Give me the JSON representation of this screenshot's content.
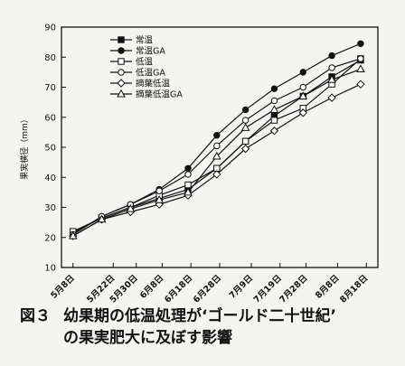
{
  "chart_data": {
    "type": "line",
    "ylabel": "果実横径（mm）",
    "xlabel": "",
    "ylim": [
      10,
      90
    ],
    "yticks": [
      10,
      20,
      30,
      40,
      50,
      60,
      70,
      80,
      90
    ],
    "grid": false,
    "legend_position": "top-left",
    "categories": [
      "5月8日",
      "5月22日",
      "5月30日",
      "6月8日",
      "6月18日",
      "6月28日",
      "7月9日",
      "7月19日",
      "7月28日",
      "8月8日",
      "8月18日"
    ],
    "x": [
      0,
      14,
      22,
      31,
      41,
      51,
      62,
      72,
      81,
      92,
      102
    ],
    "series": [
      {
        "name": "常温",
        "marker": "filled-square",
        "x": [
          0,
          10,
          20,
          30,
          40,
          50,
          60,
          70,
          80,
          90,
          100
        ],
        "values": [
          21.5,
          26.5,
          30,
          33,
          36,
          43,
          52,
          60.5,
          67,
          73.5,
          79
        ]
      },
      {
        "name": "常温GA",
        "marker": "filled-circle",
        "x": [
          0,
          10,
          20,
          30,
          40,
          50,
          60,
          70,
          80,
          90,
          100
        ],
        "values": [
          21,
          27,
          31,
          36,
          43,
          54,
          62.5,
          69.5,
          75,
          80.5,
          84.5
        ]
      },
      {
        "name": "低温",
        "marker": "open-square",
        "x": [
          0,
          10,
          20,
          30,
          40,
          50,
          60,
          70,
          80,
          90,
          100
        ],
        "values": [
          22,
          26.5,
          30,
          34,
          37.5,
          43,
          52,
          59,
          63,
          71,
          79.5
        ]
      },
      {
        "name": "低温GA",
        "marker": "open-circle",
        "x": [
          0,
          10,
          20,
          30,
          40,
          50,
          60,
          70,
          80,
          90,
          100
        ],
        "values": [
          21,
          27,
          31,
          35.5,
          41,
          50.5,
          59,
          65.5,
          70,
          76.5,
          79.5
        ]
      },
      {
        "name": "摘葉低温",
        "marker": "open-diamond",
        "x": [
          0,
          10,
          20,
          30,
          40,
          50,
          60,
          70,
          80,
          90,
          100
        ],
        "values": [
          20.5,
          26,
          28.5,
          31,
          34,
          41,
          49.5,
          55.5,
          61.5,
          66.5,
          71
        ]
      },
      {
        "name": "摘葉低温GA",
        "marker": "open-triangle",
        "x": [
          0,
          10,
          20,
          30,
          40,
          50,
          60,
          70,
          80,
          90,
          100
        ],
        "values": [
          20.5,
          26,
          29.5,
          32.5,
          35,
          47,
          56.5,
          62.5,
          67,
          72.5,
          76
        ]
      }
    ]
  },
  "caption": {
    "figure_label": "図３",
    "line1": "幼果期の低温処理が‘ゴールド二十世紀’",
    "line2": "の果実肥大に及ぼす影響"
  }
}
